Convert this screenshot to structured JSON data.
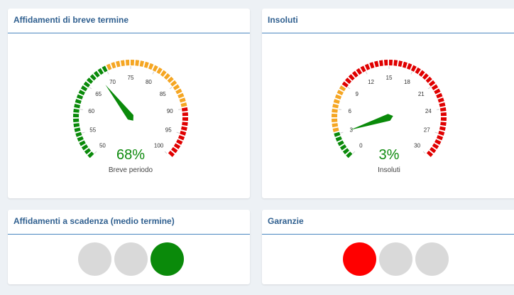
{
  "cards": {
    "short_term": {
      "title": "Affidamenti di breve termine",
      "gauge": {
        "min": 50,
        "max": 100,
        "ticks": [
          50,
          55,
          60,
          65,
          70,
          75,
          80,
          85,
          90,
          95,
          100
        ],
        "bands": [
          {
            "from": 50,
            "to": 70,
            "color": "#0a8a0a"
          },
          {
            "from": 70,
            "to": 90,
            "color": "#f5a623"
          },
          {
            "from": 90,
            "to": 100,
            "color": "#e00000"
          }
        ],
        "needle_value": 68,
        "value_text": "68%",
        "label": "Breve periodo"
      }
    },
    "unpaid": {
      "title": "Insoluti",
      "gauge": {
        "min": 0,
        "max": 30,
        "ticks": [
          0,
          3,
          6,
          9,
          12,
          15,
          18,
          21,
          24,
          27,
          30
        ],
        "bands": [
          {
            "from": 0,
            "to": 3,
            "color": "#0a8a0a"
          },
          {
            "from": 3,
            "to": 9,
            "color": "#f5a623"
          },
          {
            "from": 9,
            "to": 30,
            "color": "#e00000"
          }
        ],
        "needle_value": 3,
        "value_text": "3%",
        "label": "Insoluti"
      }
    },
    "medium_term": {
      "title": "Affidamenti a scadenza (medio termine)",
      "lights": [
        "off",
        "off",
        "green"
      ]
    },
    "guarantees": {
      "title": "Garanzie",
      "lights": [
        "red",
        "off",
        "off"
      ]
    }
  },
  "colors": {
    "green": "#0a8a0a",
    "orange": "#f5a623",
    "red": "#e00000",
    "title": "#2f5f8f",
    "light_off": "#d9d9d9",
    "value_text": "#0d8a0d"
  }
}
